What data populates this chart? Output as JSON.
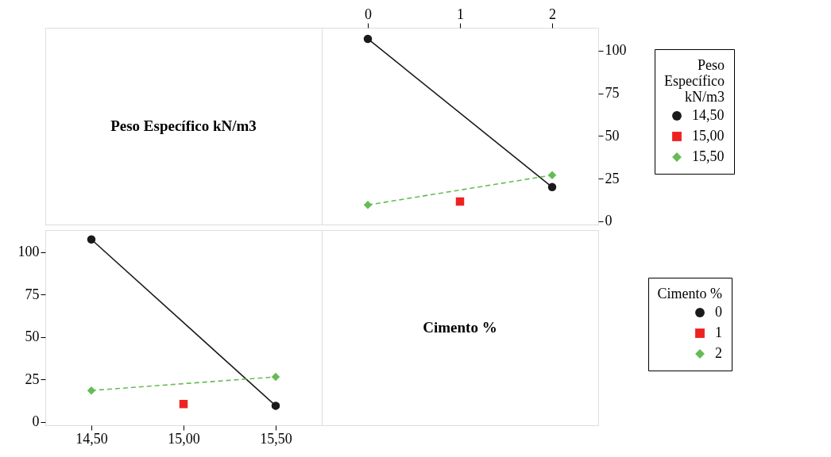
{
  "chart_data": [
    {
      "type": "other",
      "title": "Peso Específico kN/m3"
    },
    {
      "type": "line",
      "legend_title": "Peso Específico kN/m3",
      "legend": "right",
      "grid": false,
      "xlim": [
        -0.5,
        2.5
      ],
      "xticks": [
        0,
        1,
        2
      ],
      "ylim": [
        -2,
        113.5
      ],
      "yticks": [
        0,
        25,
        50,
        75,
        100
      ],
      "series": [
        {
          "name": "14,50",
          "color": "#1a1a1a",
          "marker": "circle",
          "line_style": "solid",
          "x": [
            0,
            2
          ],
          "values": [
            107,
            20
          ]
        },
        {
          "name": "15,00",
          "color": "#ee2222",
          "marker": "square",
          "x": [
            1
          ],
          "values": [
            11.5
          ]
        },
        {
          "name": "15,50",
          "color": "#66bb55",
          "marker": "diamond",
          "line_style": "dashed",
          "x": [
            0,
            2
          ],
          "values": [
            9.5,
            27
          ]
        }
      ]
    },
    {
      "type": "line",
      "legend_title": "Cimento %",
      "legend": "right",
      "grid": false,
      "xlim": [
        14.25,
        15.75
      ],
      "xticks": [
        {
          "value": 14.5,
          "label": "14,50"
        },
        {
          "value": 15.0,
          "label": "15,00"
        },
        {
          "value": 15.5,
          "label": "15,50"
        }
      ],
      "ylim": [
        -2,
        113
      ],
      "yticks": [
        0,
        25,
        50,
        75,
        100
      ],
      "series": [
        {
          "name": "0",
          "color": "#1a1a1a",
          "marker": "circle",
          "line_style": "solid",
          "x": [
            14.5,
            15.5
          ],
          "values": [
            107.5,
            9.5
          ]
        },
        {
          "name": "1",
          "color": "#ee2222",
          "marker": "square",
          "x": [
            15.0
          ],
          "values": [
            10.5
          ]
        },
        {
          "name": "2",
          "color": "#66bb55",
          "marker": "diamond",
          "line_style": "dashed",
          "x": [
            14.5,
            15.5
          ],
          "values": [
            18.5,
            26.5
          ]
        }
      ]
    },
    {
      "type": "other",
      "title": "Cimento %"
    }
  ]
}
